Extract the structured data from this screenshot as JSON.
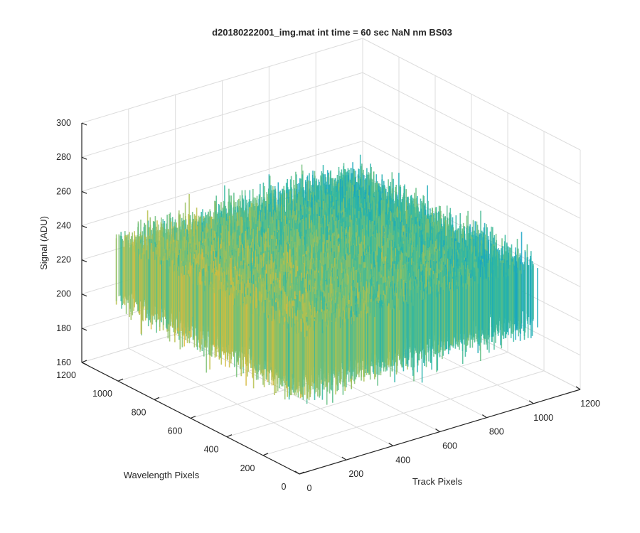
{
  "chart_data": {
    "type": "surface",
    "title": "d20180222001_img.mat int time = 60 sec  NaN nm BS03",
    "xlabel": "Track Pixels",
    "ylabel": "Wavelength Pixels",
    "zlabel": "Signal (ADU)",
    "xlim": [
      0,
      1200
    ],
    "ylim": [
      0,
      1200
    ],
    "zlim": [
      160,
      300
    ],
    "x_ticks": [
      0,
      200,
      400,
      600,
      800,
      1000,
      1200
    ],
    "y_ticks": [
      0,
      200,
      400,
      600,
      800,
      1000,
      1200
    ],
    "z_ticks": [
      160,
      180,
      200,
      220,
      240,
      260,
      280,
      300
    ],
    "data_extent": {
      "x": [
        0,
        1024
      ],
      "y": [
        0,
        1024
      ]
    },
    "signal_mean": 222,
    "signal_noise_range": [
      170,
      275
    ],
    "colormap": [
      "#0072bd",
      "#13a0c8",
      "#2ab6a6",
      "#6cc07c",
      "#b8c04a",
      "#e6b63a"
    ],
    "grid": true
  }
}
